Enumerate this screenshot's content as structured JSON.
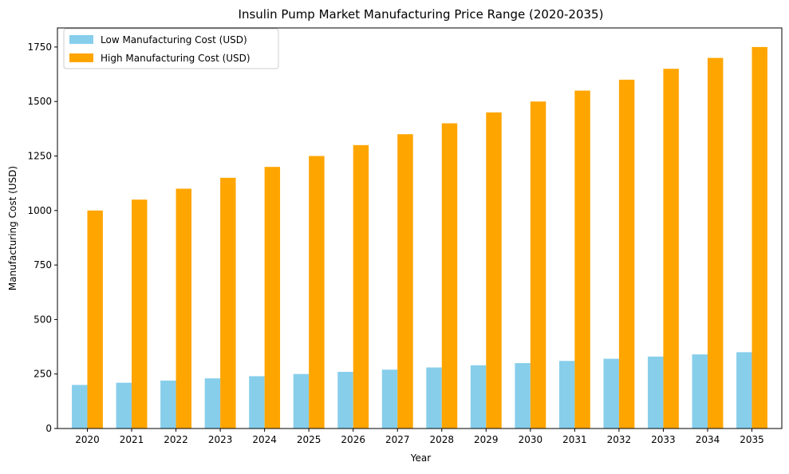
{
  "chart_data": {
    "type": "bar",
    "title": "Insulin Pump Market Manufacturing Price Range (2020-2035)",
    "xlabel": "Year",
    "ylabel": "Manufacturing Cost (USD)",
    "categories": [
      "2020",
      "2021",
      "2022",
      "2023",
      "2024",
      "2025",
      "2026",
      "2027",
      "2028",
      "2029",
      "2030",
      "2031",
      "2032",
      "2033",
      "2034",
      "2035"
    ],
    "series": [
      {
        "name": "Low Manufacturing Cost (USD)",
        "color": "#87ceeb",
        "values": [
          200,
          210,
          220,
          230,
          240,
          250,
          260,
          270,
          280,
          290,
          300,
          310,
          320,
          330,
          340,
          350
        ]
      },
      {
        "name": "High Manufacturing Cost (USD)",
        "color": "#ffa500",
        "values": [
          1000,
          1050,
          1100,
          1150,
          1200,
          1250,
          1300,
          1350,
          1400,
          1450,
          1500,
          1550,
          1600,
          1650,
          1700,
          1750
        ]
      }
    ],
    "ylim": [
      0,
      1837.5
    ],
    "yticks": [
      0,
      250,
      500,
      750,
      1000,
      1250,
      1500,
      1750
    ],
    "grid": false,
    "legend_position": "top-left"
  }
}
